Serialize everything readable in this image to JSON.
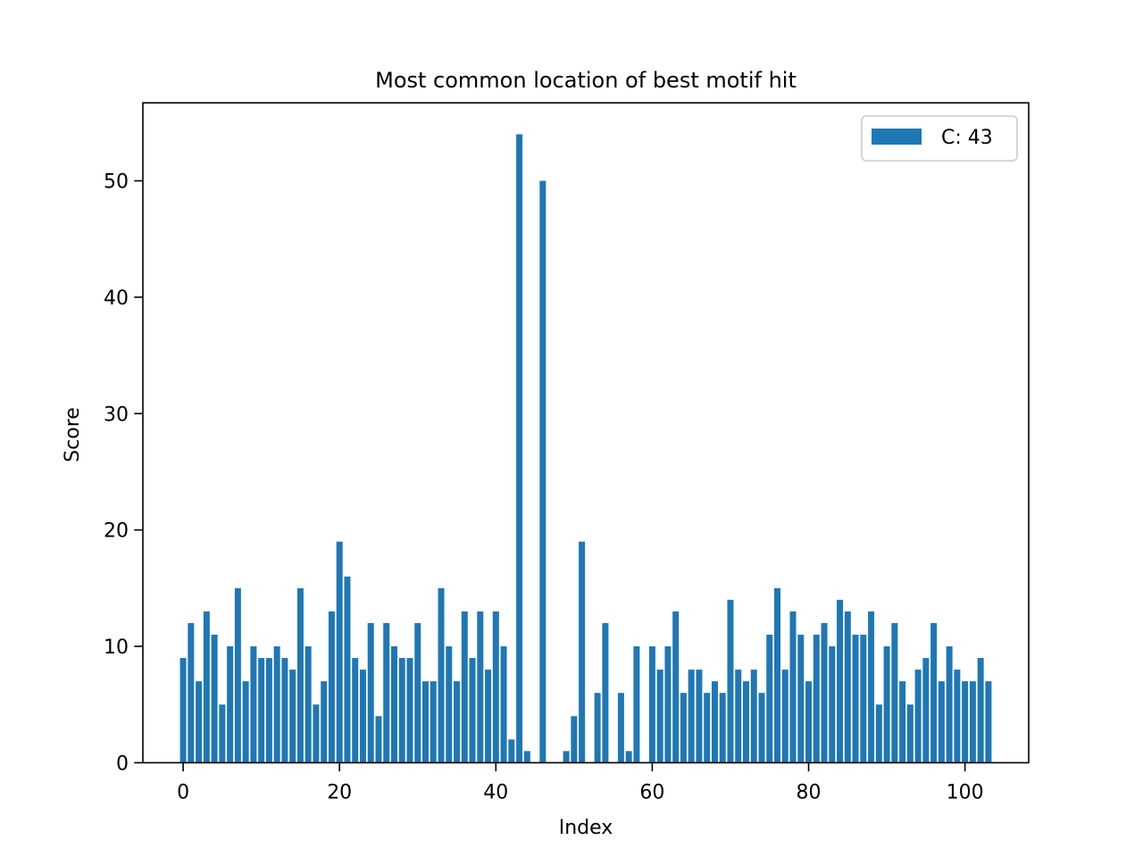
{
  "chart_data": {
    "type": "bar",
    "title": "Most common location of best motif hit",
    "xlabel": "Index",
    "ylabel": "Score",
    "xlim": [
      -5.15,
      108.15
    ],
    "ylim": [
      0,
      56.7
    ],
    "xticks": [
      0,
      20,
      40,
      60,
      80,
      100
    ],
    "yticks": [
      0,
      10,
      20,
      30,
      40,
      50
    ],
    "grid": false,
    "legend_position": "top-right",
    "color": "#1f77b4",
    "series": [
      {
        "name": "C: 43",
        "x": [
          0,
          1,
          2,
          3,
          4,
          5,
          6,
          7,
          8,
          9,
          10,
          11,
          12,
          13,
          14,
          15,
          16,
          17,
          18,
          19,
          20,
          21,
          22,
          23,
          24,
          25,
          26,
          27,
          28,
          29,
          30,
          31,
          32,
          33,
          34,
          35,
          36,
          37,
          38,
          39,
          40,
          41,
          42,
          43,
          44,
          45,
          46,
          47,
          48,
          49,
          50,
          51,
          52,
          53,
          54,
          55,
          56,
          57,
          58,
          59,
          60,
          61,
          62,
          63,
          64,
          65,
          66,
          67,
          68,
          69,
          70,
          71,
          72,
          73,
          74,
          75,
          76,
          77,
          78,
          79,
          80,
          81,
          82,
          83,
          84,
          85,
          86,
          87,
          88,
          89,
          90,
          91,
          92,
          93,
          94,
          95,
          96,
          97,
          98,
          99,
          100,
          101,
          102,
          103
        ],
        "values": [
          9,
          12,
          7,
          13,
          11,
          5,
          10,
          15,
          7,
          10,
          9,
          9,
          10,
          9,
          8,
          15,
          10,
          5,
          7,
          13,
          19,
          16,
          9,
          8,
          12,
          4,
          12,
          10,
          9,
          9,
          12,
          7,
          7,
          15,
          10,
          7,
          13,
          9,
          13,
          8,
          13,
          10,
          2,
          54,
          1,
          0,
          50,
          0,
          0,
          1,
          4,
          19,
          0,
          6,
          12,
          0,
          6,
          1,
          10,
          0,
          10,
          8,
          10,
          13,
          6,
          8,
          8,
          6,
          7,
          6,
          14,
          8,
          7,
          8,
          6,
          11,
          15,
          8,
          13,
          11,
          7,
          11,
          12,
          10,
          14,
          13,
          11,
          11,
          13,
          5,
          10,
          12,
          7,
          5,
          8,
          9,
          12,
          7,
          10,
          8,
          7,
          7,
          9,
          7
        ]
      }
    ]
  }
}
